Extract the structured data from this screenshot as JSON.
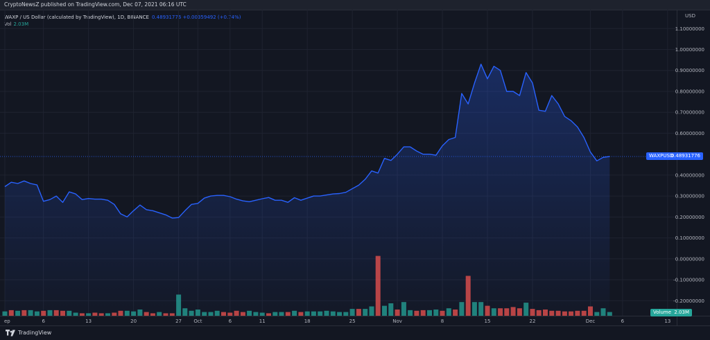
{
  "header": {
    "published": "CryptoNewsZ published on TradingView.com, Dec 07, 2021 06:16 UTC"
  },
  "legend": {
    "symbol": "WAXP / US Dollar (calculated by TradingView), 1D, BINANCE",
    "values": "0.48931776 +0.00359492 (+0.74%)",
    "vol_label": "Vol",
    "vol_value": "2.03M"
  },
  "price_tag": {
    "symbol": "WAXPUSD",
    "value": "0.48931776"
  },
  "volume_tag": {
    "label": "Volume",
    "value": "2.03M"
  },
  "footer": {
    "brand": "TradingView"
  },
  "colors": {
    "background": "#131722",
    "line": "#2962ff",
    "volume_up": "#26a69a",
    "volume_down": "#ef5350"
  },
  "chart_data": {
    "type": "area",
    "title": "WAXP / US Dollar (calculated by TradingView), 1D, BINANCE",
    "y_axis_label": "USD",
    "ylim": [
      -0.27,
      1.15
    ],
    "y_ticks": [
      {
        "value": 1.1,
        "label": "1.10000000"
      },
      {
        "value": 1.0,
        "label": "1.00000000"
      },
      {
        "value": 0.9,
        "label": "0.90000000"
      },
      {
        "value": 0.8,
        "label": "0.80000000"
      },
      {
        "value": 0.7,
        "label": "0.70000000"
      },
      {
        "value": 0.6,
        "label": "0.60000000"
      },
      {
        "value": 0.4,
        "label": "0.40000000"
      },
      {
        "value": 0.3,
        "label": "0.30000000"
      },
      {
        "value": 0.2,
        "label": "0.20000000"
      },
      {
        "value": 0.1,
        "label": "0.10000000"
      },
      {
        "value": 0.0,
        "label": "0.00000000"
      },
      {
        "value": -0.1,
        "label": "-0.10000000"
      },
      {
        "value": -0.2,
        "label": "-0.20000000"
      }
    ],
    "x_ticks": [
      {
        "index": 0,
        "label": "ep"
      },
      {
        "index": 6,
        "label": "6"
      },
      {
        "index": 13,
        "label": "13"
      },
      {
        "index": 20,
        "label": "20"
      },
      {
        "index": 27,
        "label": "27"
      },
      {
        "index": 30,
        "label": "Oct"
      },
      {
        "index": 35,
        "label": "6"
      },
      {
        "index": 40,
        "label": "11"
      },
      {
        "index": 47,
        "label": "18"
      },
      {
        "index": 54,
        "label": "25"
      },
      {
        "index": 61,
        "label": "Nov"
      },
      {
        "index": 68,
        "label": "8"
      },
      {
        "index": 75,
        "label": "15"
      },
      {
        "index": 82,
        "label": "22"
      },
      {
        "index": 91,
        "label": "Dec"
      },
      {
        "index": 96,
        "label": "6"
      },
      {
        "index": 103,
        "label": "13"
      }
    ],
    "series": [
      {
        "name": "WAXPUSD",
        "values": [
          0.345,
          0.366,
          0.36,
          0.372,
          0.36,
          0.353,
          0.275,
          0.283,
          0.3,
          0.27,
          0.32,
          0.31,
          0.283,
          0.288,
          0.285,
          0.285,
          0.28,
          0.26,
          0.215,
          0.2,
          0.23,
          0.257,
          0.235,
          0.23,
          0.22,
          0.21,
          0.195,
          0.197,
          0.23,
          0.26,
          0.265,
          0.29,
          0.3,
          0.303,
          0.303,
          0.297,
          0.285,
          0.277,
          0.273,
          0.28,
          0.287,
          0.293,
          0.28,
          0.28,
          0.27,
          0.292,
          0.28,
          0.29,
          0.3,
          0.3,
          0.305,
          0.31,
          0.312,
          0.318,
          0.335,
          0.352,
          0.38,
          0.42,
          0.41,
          0.48,
          0.47,
          0.5,
          0.535,
          0.535,
          0.515,
          0.5,
          0.5,
          0.495,
          0.54,
          0.57,
          0.58,
          0.79,
          0.74,
          0.84,
          0.93,
          0.86,
          0.92,
          0.9,
          0.8,
          0.8,
          0.78,
          0.89,
          0.84,
          0.71,
          0.705,
          0.78,
          0.74,
          0.68,
          0.66,
          0.63,
          0.58,
          0.51,
          0.468,
          0.485,
          0.489
        ]
      }
    ],
    "volume": {
      "name": "Volume",
      "last": "2.03M",
      "values": [
        0.35,
        0.45,
        0.4,
        0.45,
        0.45,
        0.35,
        0.4,
        0.45,
        0.45,
        0.4,
        0.4,
        0.25,
        0.2,
        0.2,
        0.25,
        0.2,
        0.2,
        0.25,
        0.4,
        0.4,
        0.35,
        0.5,
        0.3,
        0.2,
        0.3,
        0.2,
        0.2,
        1.7,
        0.6,
        0.4,
        0.5,
        0.3,
        0.3,
        0.4,
        0.3,
        0.25,
        0.4,
        0.3,
        0.4,
        0.3,
        0.25,
        0.2,
        0.3,
        0.3,
        0.3,
        0.4,
        0.3,
        0.35,
        0.35,
        0.35,
        0.4,
        0.35,
        0.3,
        0.3,
        0.55,
        0.55,
        0.55,
        0.75,
        4.8,
        0.8,
        1.0,
        0.5,
        1.1,
        0.45,
        0.4,
        0.45,
        0.45,
        0.5,
        0.4,
        0.6,
        0.5,
        1.1,
        3.2,
        1.1,
        1.1,
        0.8,
        0.6,
        0.6,
        0.6,
        0.7,
        0.6,
        1.05,
        0.55,
        0.45,
        0.5,
        0.4,
        0.4,
        0.35,
        0.35,
        0.4,
        0.4,
        0.75,
        0.3,
        0.6,
        0.3
      ],
      "up": [
        1,
        0,
        1,
        0,
        1,
        1,
        0,
        1,
        0,
        0,
        1,
        1,
        0,
        1,
        0,
        0,
        1,
        0,
        0,
        1,
        1,
        1,
        0,
        0,
        1,
        0,
        0,
        1,
        1,
        1,
        1,
        1,
        1,
        1,
        0,
        0,
        0,
        0,
        1,
        1,
        1,
        0,
        1,
        1,
        0,
        1,
        0,
        1,
        1,
        1,
        1,
        1,
        1,
        1,
        1,
        0,
        1,
        1,
        0,
        1,
        1,
        0,
        1,
        1,
        0,
        0,
        1,
        1,
        0,
        1,
        0,
        1,
        0,
        1,
        1,
        0,
        1,
        0,
        0,
        0,
        0,
        1,
        0,
        0,
        0,
        0,
        0,
        0,
        0,
        0,
        0,
        0,
        1,
        1,
        1
      ]
    }
  }
}
